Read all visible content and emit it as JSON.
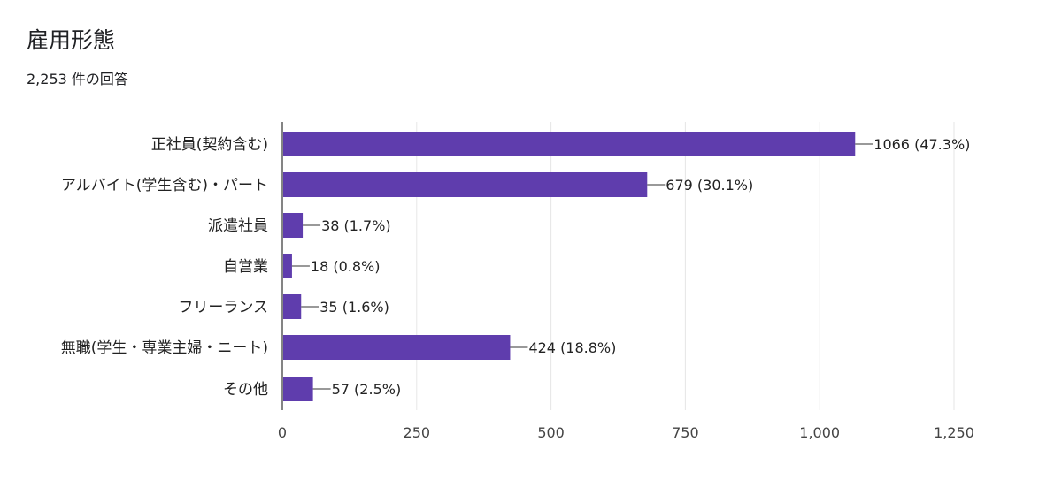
{
  "header": {
    "title": "雇用形態",
    "response_count": "2,253 件の回答"
  },
  "chart_data": {
    "type": "bar",
    "orientation": "horizontal",
    "categories": [
      "正社員(契約含む)",
      "アルバイト(学生含む)・パート",
      "派遣社員",
      "自営業",
      "フリーランス",
      "無職(学生・専業主婦・ニート)",
      "その他"
    ],
    "values": [
      1066,
      679,
      38,
      18,
      35,
      424,
      57
    ],
    "data_labels": [
      "1066 (47.3%)",
      "679 (30.1%)",
      "38 (1.7%)",
      "18 (0.8%)",
      "35 (1.6%)",
      "424 (18.8%)",
      "57 (2.5%)"
    ],
    "xlim": [
      0,
      1250
    ],
    "xticks": [
      0,
      250,
      500,
      750,
      1000,
      1250
    ],
    "xtick_labels": [
      "0",
      "250",
      "500",
      "750",
      "1,000",
      "1,250"
    ],
    "bar_color": "#5f3dad",
    "grid": true,
    "legend": "none"
  }
}
